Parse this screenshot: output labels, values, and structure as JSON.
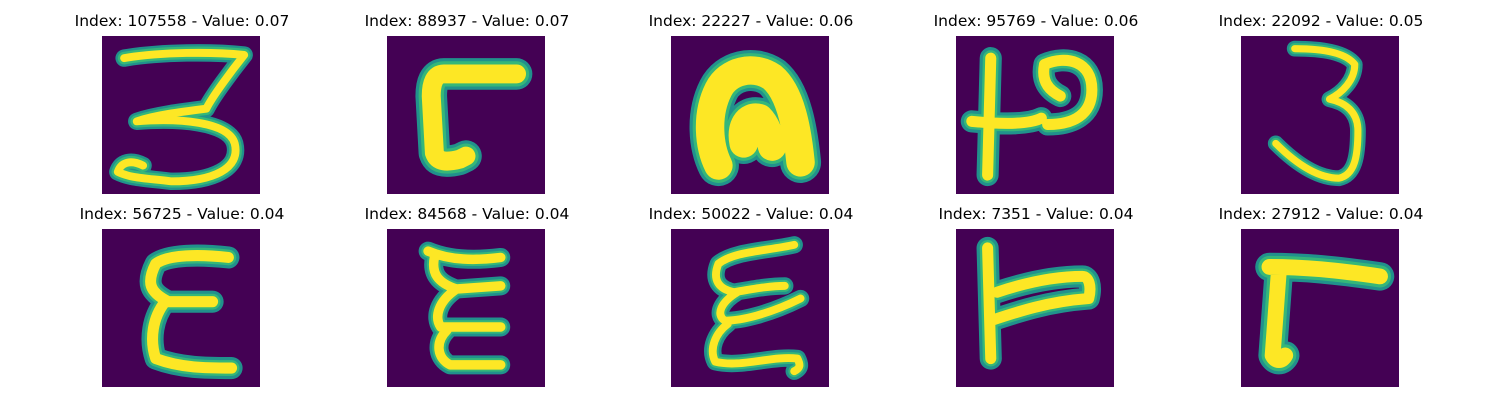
{
  "figure": {
    "colors": {
      "background": "#440154",
      "stroke_core": "#fde725",
      "stroke_edge": "#35b779",
      "stroke_halo": "#21918c",
      "page": "#ffffff"
    },
    "panels": [
      {
        "index": "107558",
        "value": "0.07",
        "title": "Index: 107558 - Value: 0.07",
        "glyph": "three-shaped character"
      },
      {
        "index": "88937",
        "value": "0.07",
        "title": "Index: 88937 - Value: 0.07",
        "glyph": "reversed-L shaped character"
      },
      {
        "index": "22227",
        "value": "0.06",
        "title": "Index: 22227 - Value: 0.06",
        "glyph": "arch-shaped character"
      },
      {
        "index": "95769",
        "value": "0.06",
        "title": "Index: 95769 - Value: 0.06",
        "glyph": "vertical stroke with right hook"
      },
      {
        "index": "22092",
        "value": "0.05",
        "title": "Index: 22092 - Value: 0.05",
        "glyph": "three-shaped character"
      },
      {
        "index": "56725",
        "value": "0.04",
        "title": "Index: 56725 - Value: 0.04",
        "glyph": "epsilon-shaped character"
      },
      {
        "index": "84568",
        "value": "0.04",
        "title": "Index: 84568 - Value: 0.04",
        "glyph": "epsilon-shaped character"
      },
      {
        "index": "50022",
        "value": "0.04",
        "title": "Index: 50022 - Value: 0.04",
        "glyph": "epsilon-shaped character"
      },
      {
        "index": "7351",
        "value": "0.04",
        "title": "Index: 7351 - Value: 0.04",
        "glyph": "T/L-shaped character"
      },
      {
        "index": "27912",
        "value": "0.04",
        "title": "Index: 27912 - Value: 0.04",
        "glyph": "gamma-shaped character"
      }
    ]
  }
}
